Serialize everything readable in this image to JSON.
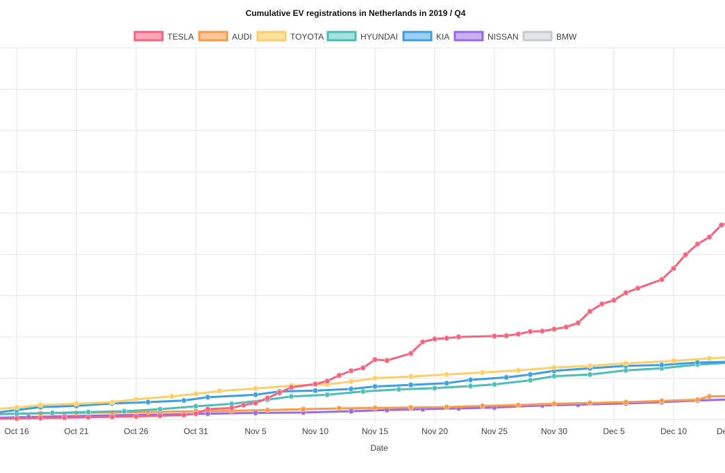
{
  "chart_data": {
    "type": "line",
    "title": "Cumulative EV registrations in Netherlands in 2019 / Q4",
    "xlabel": "Date",
    "ylabel": "",
    "x_start": "2019-10-14",
    "x_end": "2019-12-14",
    "x_tick_labels": [
      "Oct 16",
      "Oct 21",
      "Oct 26",
      "Oct 31",
      "Nov 5",
      "Nov 10",
      "Nov 15",
      "Nov 20",
      "Nov 25",
      "Nov 30",
      "Dec 5",
      "Dec 10",
      "Dec"
    ],
    "x_tick_dates": [
      "2019-10-16",
      "2019-10-21",
      "2019-10-26",
      "2019-10-31",
      "2019-11-05",
      "2019-11-10",
      "2019-11-15",
      "2019-11-20",
      "2019-11-25",
      "2019-11-30",
      "2019-12-05",
      "2019-12-10",
      "2019-12-15"
    ],
    "ylim": [
      0,
      9000
    ],
    "y_tick_values": [
      0,
      1000,
      2000,
      3000,
      4000,
      5000,
      6000,
      7000,
      8000,
      9000
    ],
    "grid": true,
    "legend_position": "top",
    "series": [
      {
        "name": "TESLA",
        "color": "#f0647f",
        "fill": "#f9a7b8",
        "points": [
          [
            "2019-10-14",
            20
          ],
          [
            "2019-10-16",
            25
          ],
          [
            "2019-10-18",
            35
          ],
          [
            "2019-10-20",
            45
          ],
          [
            "2019-10-22",
            55
          ],
          [
            "2019-10-24",
            65
          ],
          [
            "2019-10-26",
            75
          ],
          [
            "2019-10-28",
            90
          ],
          [
            "2019-10-30",
            110
          ],
          [
            "2019-10-31",
            140
          ],
          [
            "2019-11-01",
            250
          ],
          [
            "2019-11-03",
            280
          ],
          [
            "2019-11-04",
            350
          ],
          [
            "2019-11-05",
            400
          ],
          [
            "2019-11-06",
            520
          ],
          [
            "2019-11-07",
            650
          ],
          [
            "2019-11-08",
            780
          ],
          [
            "2019-11-10",
            860
          ],
          [
            "2019-11-11",
            930
          ],
          [
            "2019-11-12",
            1070
          ],
          [
            "2019-11-13",
            1180
          ],
          [
            "2019-11-14",
            1250
          ],
          [
            "2019-11-15",
            1450
          ],
          [
            "2019-11-16",
            1430
          ],
          [
            "2019-11-18",
            1600
          ],
          [
            "2019-11-19",
            1880
          ],
          [
            "2019-11-20",
            1950
          ],
          [
            "2019-11-21",
            1970
          ],
          [
            "2019-11-22",
            2000
          ],
          [
            "2019-11-25",
            2020
          ],
          [
            "2019-11-26",
            2030
          ],
          [
            "2019-11-27",
            2070
          ],
          [
            "2019-11-28",
            2130
          ],
          [
            "2019-11-29",
            2140
          ],
          [
            "2019-11-30",
            2190
          ],
          [
            "2019-12-01",
            2240
          ],
          [
            "2019-12-02",
            2340
          ],
          [
            "2019-12-03",
            2620
          ],
          [
            "2019-12-04",
            2800
          ],
          [
            "2019-12-05",
            2890
          ],
          [
            "2019-12-06",
            3070
          ],
          [
            "2019-12-07",
            3180
          ],
          [
            "2019-12-09",
            3390
          ],
          [
            "2019-12-10",
            3660
          ],
          [
            "2019-12-11",
            3990
          ],
          [
            "2019-12-12",
            4250
          ],
          [
            "2019-12-13",
            4420
          ],
          [
            "2019-12-14",
            4710
          ],
          [
            "2019-12-15",
            4800
          ]
        ]
      },
      {
        "name": "AUDI",
        "color": "#f79a4a",
        "fill": "#fcc79b",
        "points": [
          [
            "2019-10-14",
            130
          ],
          [
            "2019-10-16",
            140
          ],
          [
            "2019-10-18",
            150
          ],
          [
            "2019-10-21",
            160
          ],
          [
            "2019-10-24",
            170
          ],
          [
            "2019-10-27",
            180
          ],
          [
            "2019-10-31",
            200
          ],
          [
            "2019-11-03",
            210
          ],
          [
            "2019-11-06",
            230
          ],
          [
            "2019-11-09",
            250
          ],
          [
            "2019-11-12",
            270
          ],
          [
            "2019-11-15",
            280
          ],
          [
            "2019-11-18",
            290
          ],
          [
            "2019-11-21",
            300
          ],
          [
            "2019-11-24",
            330
          ],
          [
            "2019-11-27",
            350
          ],
          [
            "2019-11-30",
            380
          ],
          [
            "2019-12-03",
            400
          ],
          [
            "2019-12-06",
            420
          ],
          [
            "2019-12-09",
            450
          ],
          [
            "2019-12-12",
            480
          ],
          [
            "2019-12-13",
            560
          ],
          [
            "2019-12-15",
            570
          ]
        ]
      },
      {
        "name": "TOYOTA",
        "color": "#fbd06a",
        "fill": "#fde2a0",
        "points": [
          [
            "2019-10-14",
            250
          ],
          [
            "2019-10-16",
            290
          ],
          [
            "2019-10-18",
            350
          ],
          [
            "2019-10-21",
            380
          ],
          [
            "2019-10-24",
            420
          ],
          [
            "2019-10-26",
            490
          ],
          [
            "2019-10-29",
            560
          ],
          [
            "2019-10-31",
            620
          ],
          [
            "2019-11-02",
            690
          ],
          [
            "2019-11-05",
            750
          ],
          [
            "2019-11-08",
            820
          ],
          [
            "2019-11-11",
            850
          ],
          [
            "2019-11-13",
            920
          ],
          [
            "2019-11-15,",
            1000
          ],
          [
            "2019-11-18",
            1040
          ],
          [
            "2019-11-21",
            1090
          ],
          [
            "2019-11-24",
            1140
          ],
          [
            "2019-11-27",
            1190
          ],
          [
            "2019-11-30",
            1260
          ],
          [
            "2019-12-03",
            1300
          ],
          [
            "2019-12-06",
            1360
          ],
          [
            "2019-12-10",
            1420
          ],
          [
            "2019-12-13",
            1480
          ],
          [
            "2019-12-15",
            1510
          ]
        ]
      },
      {
        "name": "HYUNDAI",
        "color": "#4dbdb8",
        "fill": "#a6e1dc",
        "points": [
          [
            "2019-10-14",
            120
          ],
          [
            "2019-10-16",
            140
          ],
          [
            "2019-10-19",
            160
          ],
          [
            "2019-10-22",
            180
          ],
          [
            "2019-10-25",
            200
          ],
          [
            "2019-10-28",
            250
          ],
          [
            "2019-10-31",
            320
          ],
          [
            "2019-11-03",
            380
          ],
          [
            "2019-11-06",
            480
          ],
          [
            "2019-11-08",
            560
          ],
          [
            "2019-11-11",
            600
          ],
          [
            "2019-11-14",
            680
          ],
          [
            "2019-11-17",
            730
          ],
          [
            "2019-11-20",
            760
          ],
          [
            "2019-11-23",
            810
          ],
          [
            "2019-11-25",
            850
          ],
          [
            "2019-11-28",
            950
          ],
          [
            "2019-11-30",
            1050
          ],
          [
            "2019-12-03",
            1090
          ],
          [
            "2019-12-06",
            1190
          ],
          [
            "2019-12-09",
            1240
          ],
          [
            "2019-12-12",
            1330
          ],
          [
            "2019-12-15",
            1380
          ]
        ]
      },
      {
        "name": "KIA",
        "color": "#3e9ee0",
        "fill": "#9ccff2",
        "points": [
          [
            "2019-10-14",
            160
          ],
          [
            "2019-10-16",
            230
          ],
          [
            "2019-10-18",
            300
          ],
          [
            "2019-10-21",
            330
          ],
          [
            "2019-10-24",
            390
          ],
          [
            "2019-10-27",
            420
          ],
          [
            "2019-10-30",
            460
          ],
          [
            "2019-11-01",
            540
          ],
          [
            "2019-11-05",
            600
          ],
          [
            "2019-11-07",
            680
          ],
          [
            "2019-11-10",
            700
          ],
          [
            "2019-11-13",
            740
          ],
          [
            "2019-11-15",
            800
          ],
          [
            "2019-11-18",
            840
          ],
          [
            "2019-11-21",
            880
          ],
          [
            "2019-11-23",
            960
          ],
          [
            "2019-11-26",
            1020
          ],
          [
            "2019-11-28",
            1090
          ],
          [
            "2019-11-30",
            1180
          ],
          [
            "2019-12-03",
            1240
          ],
          [
            "2019-12-06",
            1300
          ],
          [
            "2019-12-09",
            1320
          ],
          [
            "2019-12-12",
            1380
          ],
          [
            "2019-12-15",
            1400
          ]
        ]
      },
      {
        "name": "NISSAN",
        "color": "#9a6ae6",
        "fill": "#c9b0f3",
        "points": [
          [
            "2019-10-14",
            40
          ],
          [
            "2019-10-17",
            60
          ],
          [
            "2019-10-20",
            80
          ],
          [
            "2019-10-24",
            100
          ],
          [
            "2019-10-28",
            120
          ],
          [
            "2019-11-01",
            140
          ],
          [
            "2019-11-05",
            160
          ],
          [
            "2019-11-09",
            170
          ],
          [
            "2019-11-13",
            200
          ],
          [
            "2019-11-16",
            230
          ],
          [
            "2019-11-19",
            250
          ],
          [
            "2019-11-22",
            270
          ],
          [
            "2019-11-25",
            290
          ],
          [
            "2019-11-29",
            340
          ],
          [
            "2019-12-02",
            360
          ],
          [
            "2019-12-06",
            390
          ],
          [
            "2019-12-09",
            420
          ],
          [
            "2019-12-12",
            460
          ],
          [
            "2019-12-15",
            490
          ]
        ]
      },
      {
        "name": "BMW",
        "color": "#c9cbcf",
        "fill": "#e4e5e7",
        "points": []
      }
    ]
  }
}
